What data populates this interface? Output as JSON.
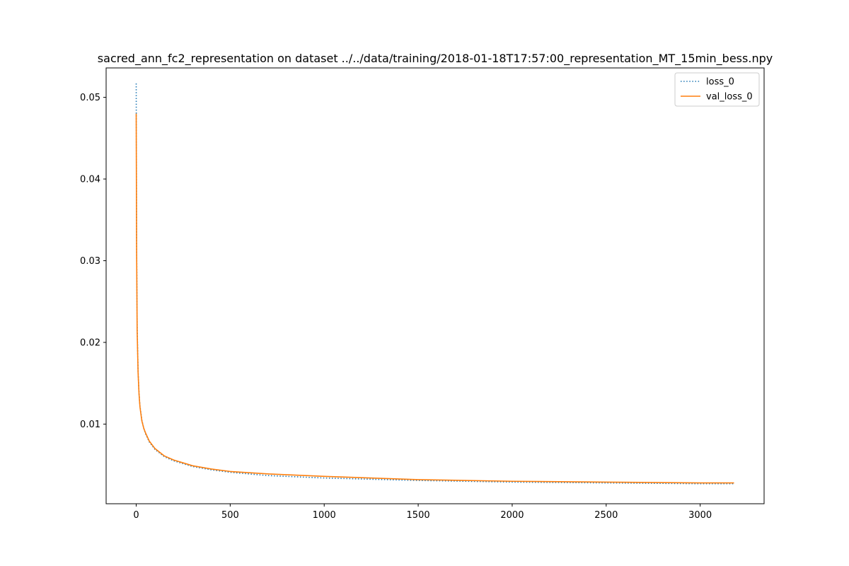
{
  "chart_data": {
    "type": "line",
    "title": "sacred_ann_fc2_representation on dataset ../../data/training/2018-01-18T17:57:00_representation_MT_15min_bess.npy",
    "xlabel": "",
    "ylabel": "",
    "xlim": [
      -160,
      3340
    ],
    "ylim": [
      0.00025,
      0.0536
    ],
    "xticks": [
      0,
      500,
      1000,
      1500,
      2000,
      2500,
      3000
    ],
    "yticks": [
      0.01,
      0.02,
      0.03,
      0.04,
      0.05
    ],
    "xtick_labels": [
      "0",
      "500",
      "1000",
      "1500",
      "2000",
      "2500",
      "3000"
    ],
    "ytick_labels": [
      "0.01",
      "0.02",
      "0.03",
      "0.04",
      "0.05"
    ],
    "grid": false,
    "legend_position": "top-right",
    "series": [
      {
        "name": "loss_0",
        "color": "#1f77b4",
        "style": "dotted",
        "x": [
          0,
          2,
          5,
          10,
          15,
          20,
          30,
          40,
          50,
          70,
          100,
          150,
          200,
          300,
          400,
          500,
          700,
          1000,
          1500,
          2000,
          2500,
          3000,
          3180
        ],
        "y": [
          0.0517,
          0.033,
          0.022,
          0.0165,
          0.0138,
          0.0122,
          0.0105,
          0.0095,
          0.0088,
          0.0078,
          0.0069,
          0.006,
          0.0055,
          0.0048,
          0.0044,
          0.0041,
          0.0037,
          0.0034,
          0.0031,
          0.0029,
          0.0028,
          0.0027,
          0.0027
        ]
      },
      {
        "name": "val_loss_0",
        "color": "#ff7f0e",
        "style": "solid",
        "x": [
          0,
          2,
          5,
          10,
          15,
          20,
          30,
          40,
          50,
          70,
          100,
          150,
          200,
          300,
          400,
          500,
          700,
          1000,
          1500,
          2000,
          2500,
          3000,
          3180
        ],
        "y": [
          0.048,
          0.032,
          0.0215,
          0.0163,
          0.0137,
          0.0121,
          0.0104,
          0.0095,
          0.0089,
          0.0079,
          0.007,
          0.0061,
          0.0056,
          0.0049,
          0.0045,
          0.0042,
          0.0039,
          0.0036,
          0.0032,
          0.003,
          0.0029,
          0.0028,
          0.0028
        ]
      }
    ]
  }
}
